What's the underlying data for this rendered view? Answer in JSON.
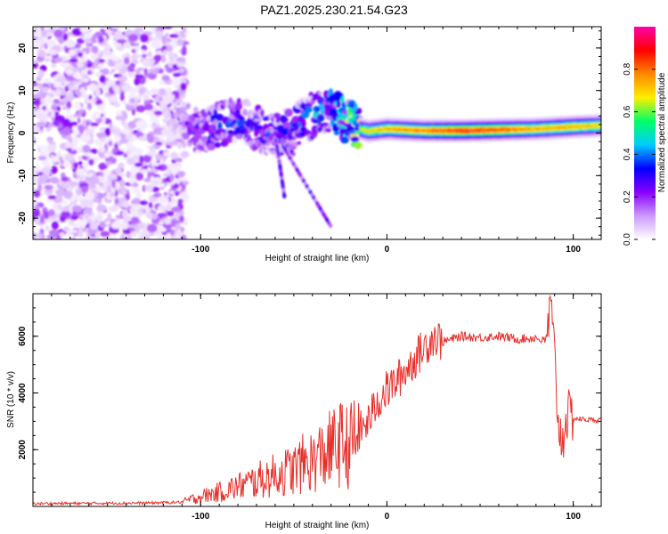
{
  "title": "PAZ1.2025.230.21.54.G23",
  "colors": {
    "snr_line": "#e8302a",
    "colormap": [
      "#ffffff",
      "#cc99ff",
      "#8800ff",
      "#0000ff",
      "#00ccff",
      "#00ff66",
      "#ffee00",
      "#ff8800",
      "#ff0000",
      "#ff00aa"
    ]
  },
  "chart_data": [
    {
      "type": "heatmap",
      "xlabel": "Height of straight line (km)",
      "ylabel": "Frequency (Hz)",
      "xlim": [
        -190,
        115
      ],
      "ylim": [
        -25,
        25
      ],
      "xticks": [
        -100,
        0,
        100
      ],
      "yticks": [
        -20,
        -10,
        0,
        10,
        20
      ],
      "colorbar": {
        "label": "Normalized spectral amplitude",
        "range": [
          0,
          1
        ],
        "ticks": [
          0.0,
          0.2,
          0.4,
          0.6,
          0.8
        ]
      },
      "ridge": {
        "description_points_x": [
          -120,
          -110,
          -100,
          -90,
          -80,
          -70,
          -60,
          -50,
          -40,
          -30,
          -25,
          -20,
          -15,
          -10,
          0,
          20,
          40,
          60,
          80,
          100,
          115
        ],
        "description_points_freq": [
          5,
          3,
          0,
          2,
          3,
          1,
          -1,
          2,
          4,
          6,
          4,
          2,
          1,
          0.5,
          1,
          0.6,
          0.6,
          0.8,
          1,
          1.5,
          1.8
        ],
        "peak_amplitude": [
          0.1,
          0.2,
          0.3,
          0.35,
          0.35,
          0.3,
          0.35,
          0.35,
          0.4,
          0.45,
          0.5,
          0.6,
          0.7,
          0.75,
          0.8,
          0.85,
          0.95,
          0.9,
          0.8,
          0.8,
          0.75
        ]
      },
      "noise_region_x": [
        -190,
        -108
      ]
    },
    {
      "type": "line",
      "xlabel": "Height of straight line (km)",
      "ylabel": "SNR (10 * v/v)",
      "xlim": [
        -190,
        115
      ],
      "ylim": [
        0,
        7500
      ],
      "xticks": [
        -100,
        0,
        100
      ],
      "yticks": [
        2000,
        4000,
        6000
      ],
      "series": [
        {
          "x": [
            -190,
            -160,
            -130,
            -110,
            -100,
            -90,
            -80,
            -70,
            -60,
            -50,
            -45,
            -40,
            -35,
            -30,
            -25,
            -20,
            -15,
            -10,
            -8,
            -5,
            0,
            5,
            10,
            15,
            20,
            25,
            30,
            40,
            50,
            60,
            70,
            80,
            85,
            88,
            90,
            92,
            94,
            96,
            100,
            110,
            115
          ],
          "y": [
            100,
            110,
            120,
            150,
            350,
            500,
            700,
            900,
            1100,
            1300,
            1500,
            1600,
            1800,
            2000,
            2200,
            2100,
            2600,
            3000,
            3300,
            3700,
            4100,
            4400,
            4800,
            5200,
            5600,
            6000,
            5800,
            6000,
            5950,
            6000,
            5900,
            5950,
            5800,
            7000,
            5200,
            3000,
            2200,
            3200,
            3100,
            3050,
            3050
          ]
        }
      ]
    }
  ]
}
